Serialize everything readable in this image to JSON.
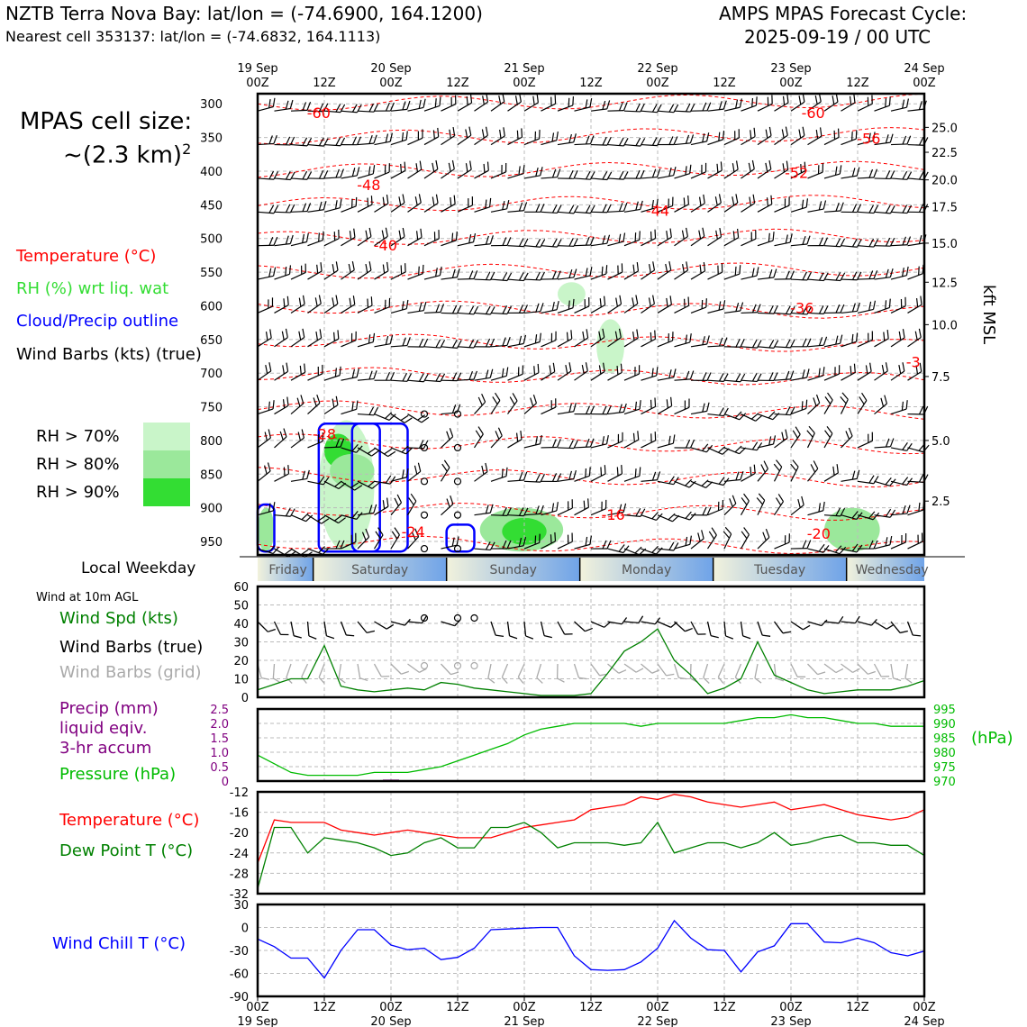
{
  "header": {
    "station_title": "NZTB Terra Nova Bay: lat/lon = (-74.6900, 164.1200)",
    "nearest_cell": "Nearest cell 353137: lat/lon = (-74.6832, 164.1113)",
    "model_title": "AMPS MPAS Forecast Cycle:",
    "cycle": "2025-09-19 / 00 UTC"
  },
  "left_panel": {
    "cell_size_label": "MPAS cell size:",
    "cell_size_value": "~(2.3 km)",
    "cell_size_exp": "2",
    "legend_temperature": "Temperature (°C)",
    "legend_rh": "RH (%) wrt liq. wat",
    "legend_cloud": "Cloud/Precip outline",
    "legend_wind": "Wind Barbs (kts) (true)",
    "rh_levels": [
      {
        "label": "RH > 70%",
        "color": "#c9f5c9"
      },
      {
        "label": "RH > 80%",
        "color": "#9be89b"
      },
      {
        "label": "RH > 90%",
        "color": "#33dd33"
      }
    ],
    "local_weekday_label": "Local Weekday",
    "wind10m_label": "Wind at 10m AGL",
    "wind_spd_label": "Wind Spd (kts)",
    "wind_barbs_true_label": "Wind Barbs (true)",
    "wind_barbs_grid_label": "Wind Barbs (grid)",
    "precip_label_1": "Precip (mm)",
    "precip_label_2": "liquid eqiv.",
    "precip_label_3": "3-hr accum",
    "pressure_label": "Pressure (hPa)",
    "temp_label": "Temperature (°C)",
    "dew_label": "Dew Point T (°C)",
    "windchill_label": "Wind Chill T (°C)",
    "right_pressure_unit": "(hPa)",
    "right_height_unit": "kft MSL"
  },
  "colors": {
    "temperature": "#ff0000",
    "rh_text": "#33dd33",
    "cloud": "#0000ff",
    "wind_spd": "#008000",
    "grid_barbs": "#aaaaaa",
    "precip": "#800080",
    "pressure": "#00bb00",
    "dew": "#008000",
    "windchill": "#0000ff"
  },
  "chart_data": [
    {
      "type": "heatmap",
      "name": "time-height cross section",
      "x_ticks_top": [
        {
          "day": "19 Sep",
          "hour": "00Z"
        },
        {
          "day": "",
          "hour": "12Z"
        },
        {
          "day": "20 Sep",
          "hour": "00Z"
        },
        {
          "day": "",
          "hour": "12Z"
        },
        {
          "day": "21 Sep",
          "hour": "00Z"
        },
        {
          "day": "",
          "hour": "12Z"
        },
        {
          "day": "22 Sep",
          "hour": "00Z"
        },
        {
          "day": "",
          "hour": "12Z"
        },
        {
          "day": "23 Sep",
          "hour": "00Z"
        },
        {
          "day": "",
          "hour": "12Z"
        },
        {
          "day": "24 Sep",
          "hour": "00Z"
        }
      ],
      "y_pressure_ticks": [
        "300",
        "350",
        "400",
        "450",
        "500",
        "550",
        "600",
        "650",
        "700",
        "750",
        "800",
        "850",
        "900",
        "950"
      ],
      "y_height_ticks": [
        {
          "label": "25.0",
          "p": 335
        },
        {
          "label": "22.5",
          "p": 372
        },
        {
          "label": "20.0",
          "p": 413
        },
        {
          "label": "17.5",
          "p": 453
        },
        {
          "label": "15.0",
          "p": 507
        },
        {
          "label": "12.5",
          "p": 565
        },
        {
          "label": "10.0",
          "p": 628
        },
        {
          "label": "7.5",
          "p": 705
        },
        {
          "label": "5.0",
          "p": 800
        },
        {
          "label": "2.5",
          "p": 890
        }
      ],
      "temperature_contour_labels": [
        {
          "value": "-60",
          "t": 11,
          "p": 313
        },
        {
          "value": "-60",
          "t": 100,
          "p": 313
        },
        {
          "value": "-56",
          "t": 110,
          "p": 351
        },
        {
          "value": "-52",
          "t": 97,
          "p": 402
        },
        {
          "value": "-48",
          "t": 20,
          "p": 420
        },
        {
          "value": "-44",
          "t": 72,
          "p": 458
        },
        {
          "value": "-40",
          "t": 23,
          "p": 510
        },
        {
          "value": "-36",
          "t": 98,
          "p": 603
        },
        {
          "value": "-3",
          "t": 118,
          "p": 683
        },
        {
          "value": "-28",
          "t": 12,
          "p": 790
        },
        {
          "value": "-24",
          "t": 28,
          "p": 935
        },
        {
          "value": "-16",
          "t": 64,
          "p": 910
        },
        {
          "value": "-20",
          "t": 101,
          "p": 938
        }
      ]
    },
    {
      "type": "line",
      "name": "wind speed 10m",
      "ylabel": "Wind Spd (kts)",
      "ylim": [
        0,
        60
      ],
      "yticks": [
        0,
        10,
        20,
        30,
        40,
        50,
        60
      ],
      "x": [
        0,
        3,
        6,
        9,
        12,
        15,
        18,
        21,
        24,
        27,
        30,
        33,
        36,
        39,
        42,
        45,
        48,
        51,
        54,
        57,
        60,
        63,
        66,
        69,
        72,
        75,
        78,
        81,
        84,
        87,
        90,
        93,
        96,
        99,
        102,
        105,
        108,
        111,
        114,
        117,
        120
      ],
      "values": [
        4,
        7,
        10,
        10,
        28,
        6,
        4,
        3,
        4,
        5,
        4,
        8,
        7,
        5,
        4,
        3,
        2,
        1,
        1,
        1,
        2,
        13,
        25,
        30,
        37,
        20,
        12,
        2,
        5,
        10,
        30,
        12,
        8,
        4,
        2,
        3,
        4,
        4,
        4,
        6,
        9
      ]
    },
    {
      "type": "line",
      "name": "pressure and precip",
      "ylabel": "Pressure (hPa)",
      "precip_ylim": [
        0,
        2.5
      ],
      "precip_yticks": [
        "0",
        "0.5",
        "1.0",
        "1.5",
        "2.0",
        "2.5"
      ],
      "pressure_ylim": [
        970,
        995
      ],
      "pressure_yticks": [
        "970",
        "975",
        "980",
        "985",
        "990",
        "995"
      ],
      "precip_bars": [
        {
          "t": 24,
          "value": 0.05
        }
      ],
      "x": [
        0,
        3,
        6,
        9,
        12,
        15,
        18,
        21,
        24,
        27,
        30,
        33,
        36,
        39,
        42,
        45,
        48,
        51,
        54,
        57,
        60,
        63,
        66,
        69,
        72,
        75,
        78,
        81,
        84,
        87,
        90,
        93,
        96,
        99,
        102,
        105,
        108,
        111,
        114,
        117,
        120
      ],
      "values": [
        979,
        976,
        973,
        972,
        972,
        972,
        972,
        973,
        973,
        973,
        974,
        975,
        977,
        979,
        981,
        983,
        986,
        988,
        989,
        990,
        990,
        990,
        990,
        989,
        990,
        990,
        990,
        990,
        990,
        991,
        992,
        992,
        993,
        992,
        992,
        991,
        990,
        990,
        989,
        989,
        989
      ]
    },
    {
      "type": "line",
      "name": "temperature and dew point",
      "ylim": [
        -32,
        -12
      ],
      "yticks": [
        "-12",
        "-16",
        "-20",
        "-24",
        "-28",
        "-32"
      ],
      "x": [
        0,
        3,
        6,
        9,
        12,
        15,
        18,
        21,
        24,
        27,
        30,
        33,
        36,
        39,
        42,
        45,
        48,
        51,
        54,
        57,
        60,
        63,
        66,
        69,
        72,
        75,
        78,
        81,
        84,
        87,
        90,
        93,
        96,
        99,
        102,
        105,
        108,
        111,
        114,
        117,
        120
      ],
      "series": [
        {
          "name": "Temperature",
          "values": [
            -26,
            -17.5,
            -18,
            -18,
            -18,
            -19.5,
            -20,
            -20.5,
            -20,
            -19.5,
            -20,
            -20.5,
            -21,
            -21,
            -21,
            -20,
            -19,
            -18.5,
            -18,
            -17.5,
            -15.5,
            -15,
            -14.5,
            -13,
            -13.5,
            -12.5,
            -13,
            -14,
            -14.5,
            -15,
            -14.5,
            -14,
            -15.5,
            -15,
            -14.5,
            -15.5,
            -16.5,
            -17,
            -17.5,
            -17,
            -15.5
          ]
        },
        {
          "name": "Dew Point",
          "values": [
            -31,
            -19,
            -19,
            -24,
            -21,
            -21.5,
            -22,
            -23,
            -24.5,
            -24,
            -22,
            -21,
            -23,
            -23,
            -19,
            -19,
            -18,
            -20,
            -23,
            -22,
            -22,
            -22,
            -22.5,
            -22,
            -18,
            -24,
            -23,
            -22,
            -22,
            -23,
            -22,
            -20,
            -22.5,
            -22,
            -21,
            -20.5,
            -22,
            -22,
            -22.5,
            -22.5,
            -24.5
          ]
        }
      ]
    },
    {
      "type": "line",
      "name": "wind chill",
      "ylabel": "Wind Chill T (°C)",
      "ylim": [
        -90,
        30
      ],
      "yticks": [
        "30",
        "0",
        "-30",
        "-60",
        "-90"
      ],
      "x": [
        0,
        3,
        6,
        9,
        12,
        15,
        18,
        21,
        24,
        27,
        30,
        33,
        36,
        39,
        42,
        45,
        48,
        51,
        54,
        57,
        60,
        63,
        66,
        69,
        72,
        75,
        78,
        81,
        84,
        87,
        90,
        93,
        96,
        99,
        102,
        105,
        108,
        111,
        114,
        117,
        120
      ],
      "values": [
        -15,
        -25,
        -40,
        -40,
        -66,
        -30,
        -3,
        -3,
        -23,
        -29,
        -27,
        -42,
        -39,
        -27,
        -3,
        -2,
        -1,
        0,
        0,
        -37,
        -55,
        -56,
        -55,
        -45,
        -27,
        9,
        -14,
        -29,
        -30,
        -58,
        -32,
        -24,
        5,
        5,
        -19,
        -20,
        -14,
        -20,
        -33,
        -37,
        -31
      ]
    }
  ],
  "weekdays": [
    "Friday",
    "Saturday",
    "Sunday",
    "Monday",
    "Tuesday",
    "Wednesday"
  ],
  "bottom_ticks": [
    {
      "hour": "00Z",
      "day": "19 Sep"
    },
    {
      "hour": "12Z",
      "day": ""
    },
    {
      "hour": "00Z",
      "day": "20 Sep"
    },
    {
      "hour": "12Z",
      "day": ""
    },
    {
      "hour": "00Z",
      "day": "21 Sep"
    },
    {
      "hour": "12Z",
      "day": ""
    },
    {
      "hour": "00Z",
      "day": "22 Sep"
    },
    {
      "hour": "12Z",
      "day": ""
    },
    {
      "hour": "00Z",
      "day": "23 Sep"
    },
    {
      "hour": "12Z",
      "day": ""
    },
    {
      "hour": "00Z",
      "day": "24 Sep"
    }
  ]
}
